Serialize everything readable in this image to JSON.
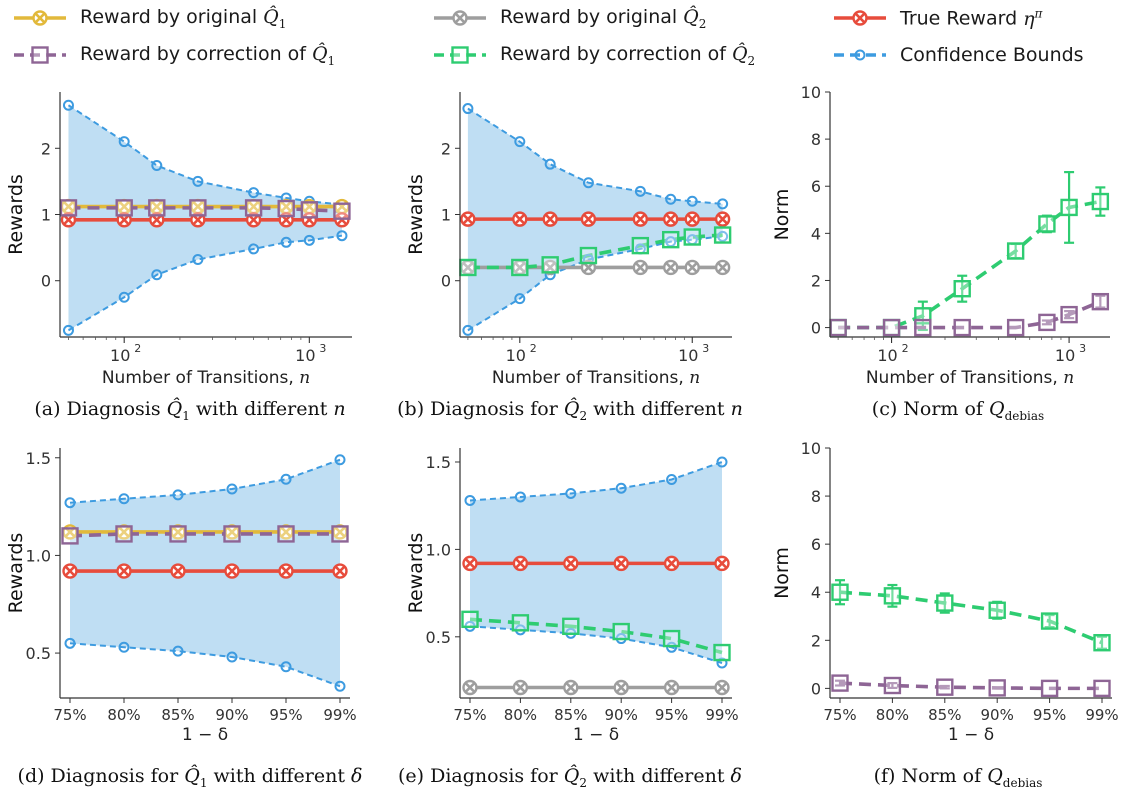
{
  "legend": [
    {
      "key": "orig1",
      "text": "Reward by original",
      "math": "Q̂",
      "sub": "1",
      "color": "#e2b93b",
      "marker": "x",
      "dash": "solid"
    },
    {
      "key": "orig2",
      "text": "Reward by original",
      "math": "Q̂",
      "sub": "2",
      "color": "#9e9e9e",
      "marker": "x",
      "dash": "solid"
    },
    {
      "key": "true",
      "text": "True Reward",
      "math": "η",
      "sup": "π",
      "color": "#e74c3c",
      "marker": "x",
      "dash": "solid"
    },
    {
      "key": "corr1",
      "text": "Reward by correction of",
      "math": "Q̂",
      "sub": "1",
      "color": "#8e6595",
      "marker": "square",
      "dash": "dashed"
    },
    {
      "key": "corr2",
      "text": "Reward by correction of",
      "math": "Q̂",
      "sub": "2",
      "color": "#2ecc71",
      "marker": "square",
      "dash": "dashed"
    },
    {
      "key": "bounds",
      "text": "Confidence Bounds",
      "color": "#3d9be0",
      "marker": "circle",
      "dash": "dashed"
    }
  ],
  "colors": {
    "orig1": "#e2b93b",
    "orig2": "#9e9e9e",
    "true": "#e74c3c",
    "corr1": "#8e6595",
    "corr2": "#2ecc71",
    "bounds": "#3d9be0",
    "fill": "#bcdcf2"
  },
  "chart_data": [
    {
      "id": "a",
      "type": "line",
      "xscale": "log",
      "x": [
        50,
        100,
        150,
        250,
        500,
        750,
        1000,
        1500
      ],
      "xticks": [
        {
          "v": 100,
          "base": "10",
          "exp": "2"
        },
        {
          "v": 1000,
          "base": "10",
          "exp": "3"
        }
      ],
      "xlim": [
        45,
        1700
      ],
      "ylim": [
        -0.85,
        2.85
      ],
      "yticks": [
        0,
        1,
        2
      ],
      "ylabel": "Rewards",
      "xlabel": "Number of Transitions,",
      "xlabel_var": "n",
      "caption": {
        "prefix": "(a) Diagnosis",
        "math": "Q̂",
        "sub": "1",
        "suffix": "with different",
        "var": "n"
      },
      "bands": {
        "lower": [
          -0.75,
          -0.25,
          0.09,
          0.32,
          0.48,
          0.58,
          0.61,
          0.68
        ],
        "upper": [
          2.65,
          2.1,
          1.74,
          1.5,
          1.33,
          1.25,
          1.2,
          1.15
        ]
      },
      "series": [
        {
          "key": "orig1",
          "values": [
            1.12,
            1.12,
            1.12,
            1.12,
            1.12,
            1.12,
            1.12,
            1.12
          ],
          "marker": "x",
          "dash": "solid"
        },
        {
          "key": "true",
          "values": [
            0.92,
            0.92,
            0.92,
            0.92,
            0.92,
            0.92,
            0.92,
            0.92
          ],
          "marker": "x",
          "dash": "solid"
        },
        {
          "key": "corr1",
          "values": [
            1.1,
            1.1,
            1.1,
            1.1,
            1.1,
            1.09,
            1.07,
            1.05
          ],
          "marker": "square",
          "dash": "dashed"
        }
      ]
    },
    {
      "id": "b",
      "type": "line",
      "xscale": "log",
      "x": [
        50,
        100,
        150,
        250,
        500,
        750,
        1000,
        1500
      ],
      "xticks": [
        {
          "v": 100,
          "base": "10",
          "exp": "2"
        },
        {
          "v": 1000,
          "base": "10",
          "exp": "3"
        }
      ],
      "xlim": [
        45,
        1700
      ],
      "ylim": [
        -0.85,
        2.85
      ],
      "yticks": [
        0,
        1,
        2
      ],
      "ylabel": "Rewards",
      "xlabel": "Number of Transitions,",
      "xlabel_var": "n",
      "caption": {
        "prefix": "(b) Diagnosis for",
        "math": "Q̂",
        "sub": "2",
        "suffix": "with different",
        "var": "n"
      },
      "bands": {
        "lower": [
          -0.75,
          -0.27,
          0.09,
          0.32,
          0.48,
          0.59,
          0.62,
          0.67
        ],
        "upper": [
          2.6,
          2.1,
          1.76,
          1.48,
          1.35,
          1.23,
          1.2,
          1.16
        ]
      },
      "series": [
        {
          "key": "true",
          "values": [
            0.93,
            0.93,
            0.93,
            0.93,
            0.93,
            0.93,
            0.93,
            0.93
          ],
          "marker": "x",
          "dash": "solid"
        },
        {
          "key": "orig2",
          "values": [
            0.2,
            0.2,
            0.2,
            0.2,
            0.2,
            0.2,
            0.2,
            0.2
          ],
          "marker": "x",
          "dash": "solid"
        },
        {
          "key": "corr2",
          "values": [
            0.2,
            0.2,
            0.24,
            0.38,
            0.53,
            0.62,
            0.66,
            0.69
          ],
          "marker": "square",
          "dash": "dashed"
        }
      ]
    },
    {
      "id": "c",
      "type": "line",
      "xscale": "log",
      "x": [
        50,
        100,
        150,
        250,
        500,
        750,
        1000,
        1500
      ],
      "xticks": [
        {
          "v": 100,
          "base": "10",
          "exp": "2"
        },
        {
          "v": 1000,
          "base": "10",
          "exp": "3"
        }
      ],
      "xlim": [
        45,
        1700
      ],
      "ylim": [
        -0.4,
        10
      ],
      "yticks": [
        0,
        2,
        4,
        6,
        8,
        10
      ],
      "ylabel": "Norm",
      "xlabel": "Number of Transitions,",
      "xlabel_var": "n",
      "caption": {
        "prefix": "(c) Norm of",
        "math": "Q",
        "sub": "debias",
        "suffix": "",
        "var": ""
      },
      "series": [
        {
          "key": "corr2",
          "values": [
            0,
            0,
            0.5,
            1.65,
            3.25,
            4.4,
            5.1,
            5.35
          ],
          "err": [
            0,
            0,
            0.6,
            0.55,
            0.3,
            0.35,
            1.5,
            0.6
          ],
          "marker": "square",
          "dash": "dashed"
        },
        {
          "key": "corr1",
          "values": [
            0,
            0,
            0,
            0,
            0,
            0.22,
            0.55,
            1.1
          ],
          "err": [
            0,
            0,
            0,
            0,
            0,
            0.08,
            0.15,
            0.25
          ],
          "marker": "square",
          "dash": "dashed"
        }
      ]
    },
    {
      "id": "d",
      "type": "line",
      "xscale": "linear",
      "categories": [
        "75%",
        "80%",
        "85%",
        "90%",
        "95%",
        "99%"
      ],
      "ylim": [
        0.27,
        1.55
      ],
      "yticks": [
        0.5,
        1.0,
        1.5
      ],
      "ytick_labels": [
        "0.5",
        "1.0",
        "1.5"
      ],
      "ylabel": "Rewards",
      "xlabel_math": "1 − δ",
      "caption": {
        "prefix": "(d) Diagnosis for",
        "math": "Q̂",
        "sub": "1",
        "suffix": "with different",
        "var": "δ"
      },
      "bands": {
        "lower": [
          0.55,
          0.53,
          0.51,
          0.48,
          0.43,
          0.33
        ],
        "upper": [
          1.27,
          1.29,
          1.31,
          1.34,
          1.39,
          1.49
        ]
      },
      "series": [
        {
          "key": "orig1",
          "values": [
            1.12,
            1.12,
            1.12,
            1.12,
            1.12,
            1.12
          ],
          "marker": "x",
          "dash": "solid"
        },
        {
          "key": "true",
          "values": [
            0.92,
            0.92,
            0.92,
            0.92,
            0.92,
            0.92
          ],
          "marker": "x",
          "dash": "solid"
        },
        {
          "key": "corr1",
          "values": [
            1.1,
            1.11,
            1.11,
            1.11,
            1.11,
            1.11
          ],
          "marker": "square",
          "dash": "dashed"
        }
      ]
    },
    {
      "id": "e",
      "type": "line",
      "xscale": "linear",
      "categories": [
        "75%",
        "80%",
        "85%",
        "90%",
        "95%",
        "99%"
      ],
      "ylim": [
        0.15,
        1.58
      ],
      "yticks": [
        0.5,
        1.0,
        1.5
      ],
      "ytick_labels": [
        "0.5",
        "1.0",
        "1.5"
      ],
      "ylabel": "Rewards",
      "xlabel_math": "1 − δ",
      "caption": {
        "prefix": "(e) Diagnosis for",
        "math": "Q̂",
        "sub": "2",
        "suffix": "with different",
        "var": "δ"
      },
      "bands": {
        "lower": [
          0.56,
          0.54,
          0.52,
          0.49,
          0.44,
          0.35
        ],
        "upper": [
          1.28,
          1.3,
          1.32,
          1.35,
          1.4,
          1.5
        ]
      },
      "series": [
        {
          "key": "true",
          "values": [
            0.92,
            0.92,
            0.92,
            0.92,
            0.92,
            0.92
          ],
          "marker": "x",
          "dash": "solid"
        },
        {
          "key": "orig2",
          "values": [
            0.21,
            0.21,
            0.21,
            0.21,
            0.21,
            0.21
          ],
          "marker": "x",
          "dash": "solid"
        },
        {
          "key": "corr2",
          "values": [
            0.6,
            0.58,
            0.56,
            0.53,
            0.49,
            0.41
          ],
          "marker": "square",
          "dash": "dashed"
        }
      ]
    },
    {
      "id": "f",
      "type": "line",
      "xscale": "linear",
      "categories": [
        "75%",
        "80%",
        "85%",
        "90%",
        "95%",
        "99%"
      ],
      "ylim": [
        -0.4,
        10
      ],
      "yticks": [
        0,
        2,
        4,
        6,
        8,
        10
      ],
      "ylabel": "Norm",
      "xlabel_math": "1 − δ",
      "caption": {
        "prefix": "(f) Norm of",
        "math": "Q",
        "sub": "debias",
        "suffix": "",
        "var": ""
      },
      "series": [
        {
          "key": "corr2",
          "values": [
            4.0,
            3.85,
            3.55,
            3.25,
            2.8,
            1.9
          ],
          "err": [
            0.5,
            0.45,
            0.4,
            0.35,
            0.25,
            0.25
          ],
          "marker": "square",
          "dash": "dashed"
        },
        {
          "key": "corr1",
          "values": [
            0.22,
            0.12,
            0.05,
            0.02,
            0.0,
            0.0
          ],
          "err": [
            0.1,
            0.1,
            0.05,
            0.0,
            0.0,
            0.0
          ],
          "marker": "square",
          "dash": "dashed"
        }
      ]
    }
  ]
}
